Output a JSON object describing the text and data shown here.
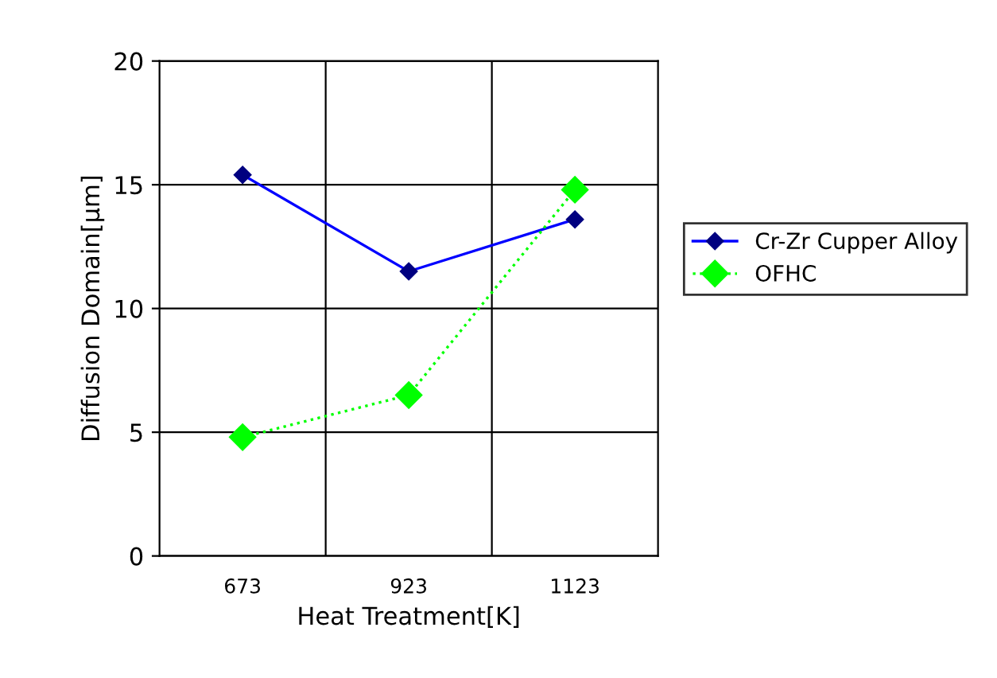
{
  "chart_data": {
    "type": "line",
    "xlabel": "Heat Treatment[K]",
    "ylabel": "Diffusion Domain[μm]",
    "categories": [
      "673",
      "923",
      "1123"
    ],
    "series": [
      {
        "name": "Cr-Zr Cupper Alloy",
        "color": "#0000ff",
        "values": [
          15.4,
          11.5,
          13.6
        ],
        "line_style": "solid"
      },
      {
        "name": "OFHC",
        "color": "#00ff00",
        "values": [
          4.8,
          6.5,
          14.8
        ],
        "line_style": "dotted"
      }
    ],
    "ylim": [
      0,
      20
    ],
    "yticks": [
      0,
      5,
      10,
      15,
      20
    ],
    "grid": true,
    "legend": "right",
    "marker": "diamond"
  }
}
